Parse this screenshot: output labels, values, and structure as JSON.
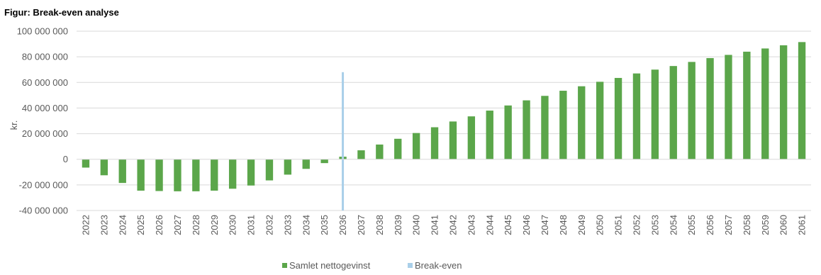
{
  "chart_data": {
    "type": "bar",
    "title": "Figur: Break-even analyse",
    "ylabel": "kr.",
    "xlabel": "",
    "ylim": [
      -40000000,
      100000000
    ],
    "yticks": [
      -40000000,
      -20000000,
      0,
      20000000,
      40000000,
      60000000,
      80000000,
      100000000
    ],
    "ytick_labels": [
      "-40 000 000",
      "-20 000 000",
      "0",
      "20 000 000",
      "40 000 000",
      "60 000 000",
      "80 000 000",
      "100 000 000"
    ],
    "grid": true,
    "legend_position": "bottom",
    "categories": [
      "2022",
      "2023",
      "2024",
      "2025",
      "2026",
      "2027",
      "2028",
      "2029",
      "2030",
      "2031",
      "2032",
      "2033",
      "2034",
      "2035",
      "2036",
      "2037",
      "2038",
      "2039",
      "2040",
      "2041",
      "2042",
      "2043",
      "2044",
      "2045",
      "2046",
      "2047",
      "2048",
      "2049",
      "2050",
      "2051",
      "2052",
      "2053",
      "2054",
      "2055",
      "2056",
      "2057",
      "2058",
      "2059",
      "2060",
      "2061"
    ],
    "series": [
      {
        "name": "Samlet nettogevinst",
        "color": "#5ba64a",
        "values": [
          -6500000,
          -12500000,
          -18500000,
          -24500000,
          -24800000,
          -25000000,
          -25000000,
          -24500000,
          -23000000,
          -20500000,
          -16500000,
          -12000000,
          -7500000,
          -3000000,
          2000000,
          7000000,
          11500000,
          16000000,
          20500000,
          25000000,
          29500000,
          33500000,
          38000000,
          42000000,
          46000000,
          49500000,
          53500000,
          57000000,
          60500000,
          63500000,
          67000000,
          70000000,
          72800000,
          76000000,
          79000000,
          81500000,
          84000000,
          86500000,
          89000000,
          91500000
        ]
      },
      {
        "name": "Break-even",
        "color": "#a9cfe9",
        "type": "vertical-line",
        "x": "2036",
        "y_range": [
          -40000000,
          68000000
        ]
      }
    ]
  }
}
